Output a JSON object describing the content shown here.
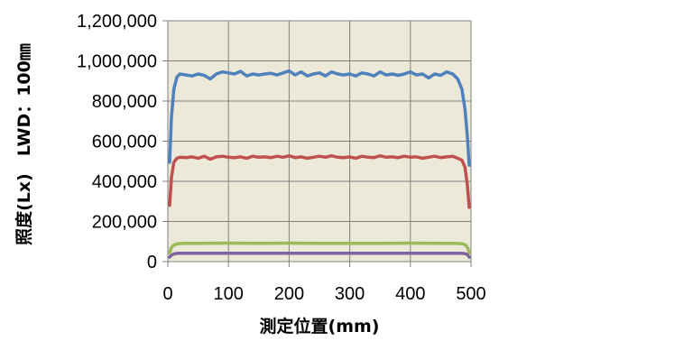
{
  "chart_data": {
    "type": "line",
    "xlabel": "測定位置(mm)",
    "ylabel": "照度(Lx)　LWD：100㎜",
    "xlim": [
      0,
      500
    ],
    "ylim": [
      0,
      1200000
    ],
    "x_ticks": [
      "0",
      "100",
      "200",
      "300",
      "400",
      "500"
    ],
    "y_ticks": [
      "0",
      "200,000",
      "400,000",
      "600,000",
      "800,000",
      "1,000,000",
      "1,200,000"
    ],
    "x_tick_values": [
      0,
      100,
      200,
      300,
      400,
      500
    ],
    "y_tick_values": [
      0,
      200000,
      400000,
      600000,
      800000,
      1000000,
      1200000
    ],
    "grid": true,
    "plot_background": "#ece9d9",
    "grid_color": "#808080",
    "series": [
      {
        "color": "#4f81bd",
        "x": [
          3,
          6,
          10,
          15,
          20,
          30,
          40,
          50,
          60,
          70,
          80,
          90,
          100,
          110,
          120,
          130,
          140,
          150,
          160,
          170,
          180,
          190,
          200,
          210,
          220,
          230,
          240,
          250,
          260,
          270,
          280,
          290,
          300,
          310,
          320,
          330,
          340,
          350,
          360,
          370,
          380,
          390,
          400,
          410,
          420,
          430,
          440,
          450,
          460,
          470,
          478,
          485,
          490,
          494,
          497
        ],
        "y": [
          495000,
          720000,
          860000,
          920000,
          935000,
          930000,
          925000,
          935000,
          928000,
          910000,
          935000,
          945000,
          940000,
          935000,
          948000,
          925000,
          935000,
          930000,
          935000,
          938000,
          930000,
          940000,
          950000,
          930000,
          945000,
          925000,
          935000,
          940000,
          925000,
          945000,
          935000,
          930000,
          935000,
          925000,
          940000,
          935000,
          925000,
          945000,
          930000,
          935000,
          928000,
          935000,
          945000,
          930000,
          935000,
          915000,
          935000,
          928000,
          945000,
          935000,
          910000,
          860000,
          760000,
          620000,
          480000
        ]
      },
      {
        "color": "#c0504d",
        "x": [
          3,
          6,
          10,
          15,
          20,
          30,
          40,
          50,
          60,
          70,
          80,
          90,
          100,
          110,
          120,
          130,
          140,
          150,
          160,
          170,
          180,
          190,
          200,
          210,
          220,
          230,
          240,
          250,
          260,
          270,
          280,
          290,
          300,
          310,
          320,
          330,
          340,
          350,
          360,
          370,
          380,
          390,
          400,
          410,
          420,
          430,
          440,
          450,
          460,
          470,
          478,
          485,
          490,
          494,
          497
        ],
        "y": [
          280000,
          420000,
          495000,
          515000,
          520000,
          518000,
          522000,
          515000,
          525000,
          510000,
          522000,
          525000,
          520000,
          518000,
          522000,
          515000,
          525000,
          520000,
          522000,
          518000,
          525000,
          520000,
          527000,
          518000,
          522000,
          515000,
          520000,
          525000,
          520000,
          527000,
          520000,
          518000,
          522000,
          515000,
          525000,
          520000,
          518000,
          527000,
          520000,
          522000,
          518000,
          525000,
          520000,
          522000,
          515000,
          520000,
          525000,
          518000,
          522000,
          525000,
          515000,
          505000,
          470000,
          380000,
          270000
        ]
      },
      {
        "color": "#9bbb59",
        "x": [
          3,
          6,
          10,
          15,
          20,
          30,
          50,
          100,
          150,
          200,
          250,
          300,
          350,
          400,
          450,
          470,
          480,
          487,
          492,
          495,
          497
        ],
        "y": [
          45000,
          70000,
          82000,
          88000,
          90000,
          91000,
          91000,
          92000,
          91000,
          92000,
          91000,
          91000,
          91000,
          92000,
          91000,
          91000,
          90000,
          88000,
          80000,
          65000,
          45000
        ]
      },
      {
        "color": "#8064a2",
        "x": [
          3,
          6,
          10,
          15,
          20,
          30,
          50,
          100,
          150,
          200,
          250,
          300,
          350,
          400,
          450,
          470,
          480,
          487,
          492,
          495,
          497
        ],
        "y": [
          22000,
          32000,
          38000,
          41000,
          42000,
          42000,
          42000,
          42000,
          42000,
          42000,
          42000,
          42000,
          42000,
          42000,
          42000,
          42000,
          42000,
          41000,
          38000,
          32000,
          22000
        ]
      }
    ]
  }
}
